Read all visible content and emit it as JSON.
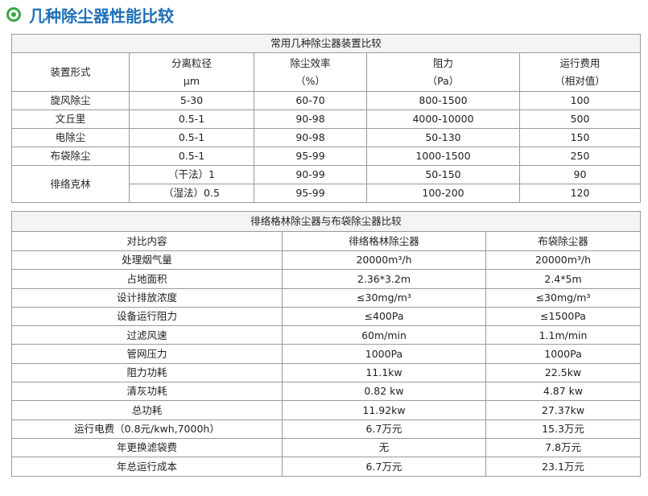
{
  "header": {
    "title": "几种除尘器性能比较"
  },
  "table1": {
    "title": "常用几种除尘器装置比较",
    "header": [
      [
        "装置形式"
      ],
      [
        "分离粒径",
        "μm"
      ],
      [
        "除尘效率",
        "（%）"
      ],
      [
        "阻力",
        "（Pa）"
      ],
      [
        "运行费用",
        "（相对值）"
      ]
    ],
    "rows": [
      [
        "旋风除尘",
        "5-30",
        "60-70",
        "800-1500",
        "100"
      ],
      [
        "文丘里",
        "0.5-1",
        "90-98",
        "4000-10000",
        "500"
      ],
      [
        "电除尘",
        "0.5-1",
        "90-98",
        "50-130",
        "150"
      ],
      [
        "布袋除尘",
        "0.5-1",
        "95-99",
        "1000-1500",
        "250"
      ]
    ],
    "group": {
      "name": "徘络克林",
      "rows": [
        [
          "（干法）1",
          "90-99",
          "50-150",
          "90"
        ],
        [
          "（湿法）0.5",
          "95-99",
          "100-200",
          "120"
        ]
      ]
    }
  },
  "table2": {
    "title": "徘络格林除尘器与布袋除尘器比较",
    "header": [
      "对比内容",
      "徘络格林除尘器",
      "布袋除尘器"
    ],
    "rows": [
      [
        "处理烟气量",
        "20000m³/h",
        "20000m³/h"
      ],
      [
        "占地面积",
        "2.36*3.2m",
        "2.4*5m"
      ],
      [
        "设计排放浓度",
        "≤30mg/m³",
        "≤30mg/m³"
      ],
      [
        "设备运行阻力",
        "≤400Pa",
        "≤1500Pa"
      ],
      [
        "过滤风速",
        "60m/min",
        "1.1m/min"
      ],
      [
        "管网压力",
        "1000Pa",
        "1000Pa"
      ],
      [
        "阻力功耗",
        "11.1kw",
        "22.5kw"
      ],
      [
        "清灰功耗",
        "0.82 kw",
        "4.87 kw"
      ],
      [
        "总功耗",
        "11.92kw",
        "27.37kw"
      ],
      [
        "运行电费（0.8元/kwh,7000h）",
        "6.7万元",
        "15.3万元"
      ],
      [
        "年更换滤袋费",
        "无",
        "7.8万元"
      ],
      [
        "年总运行成本",
        "6.7万元",
        "23.1万元"
      ]
    ]
  }
}
